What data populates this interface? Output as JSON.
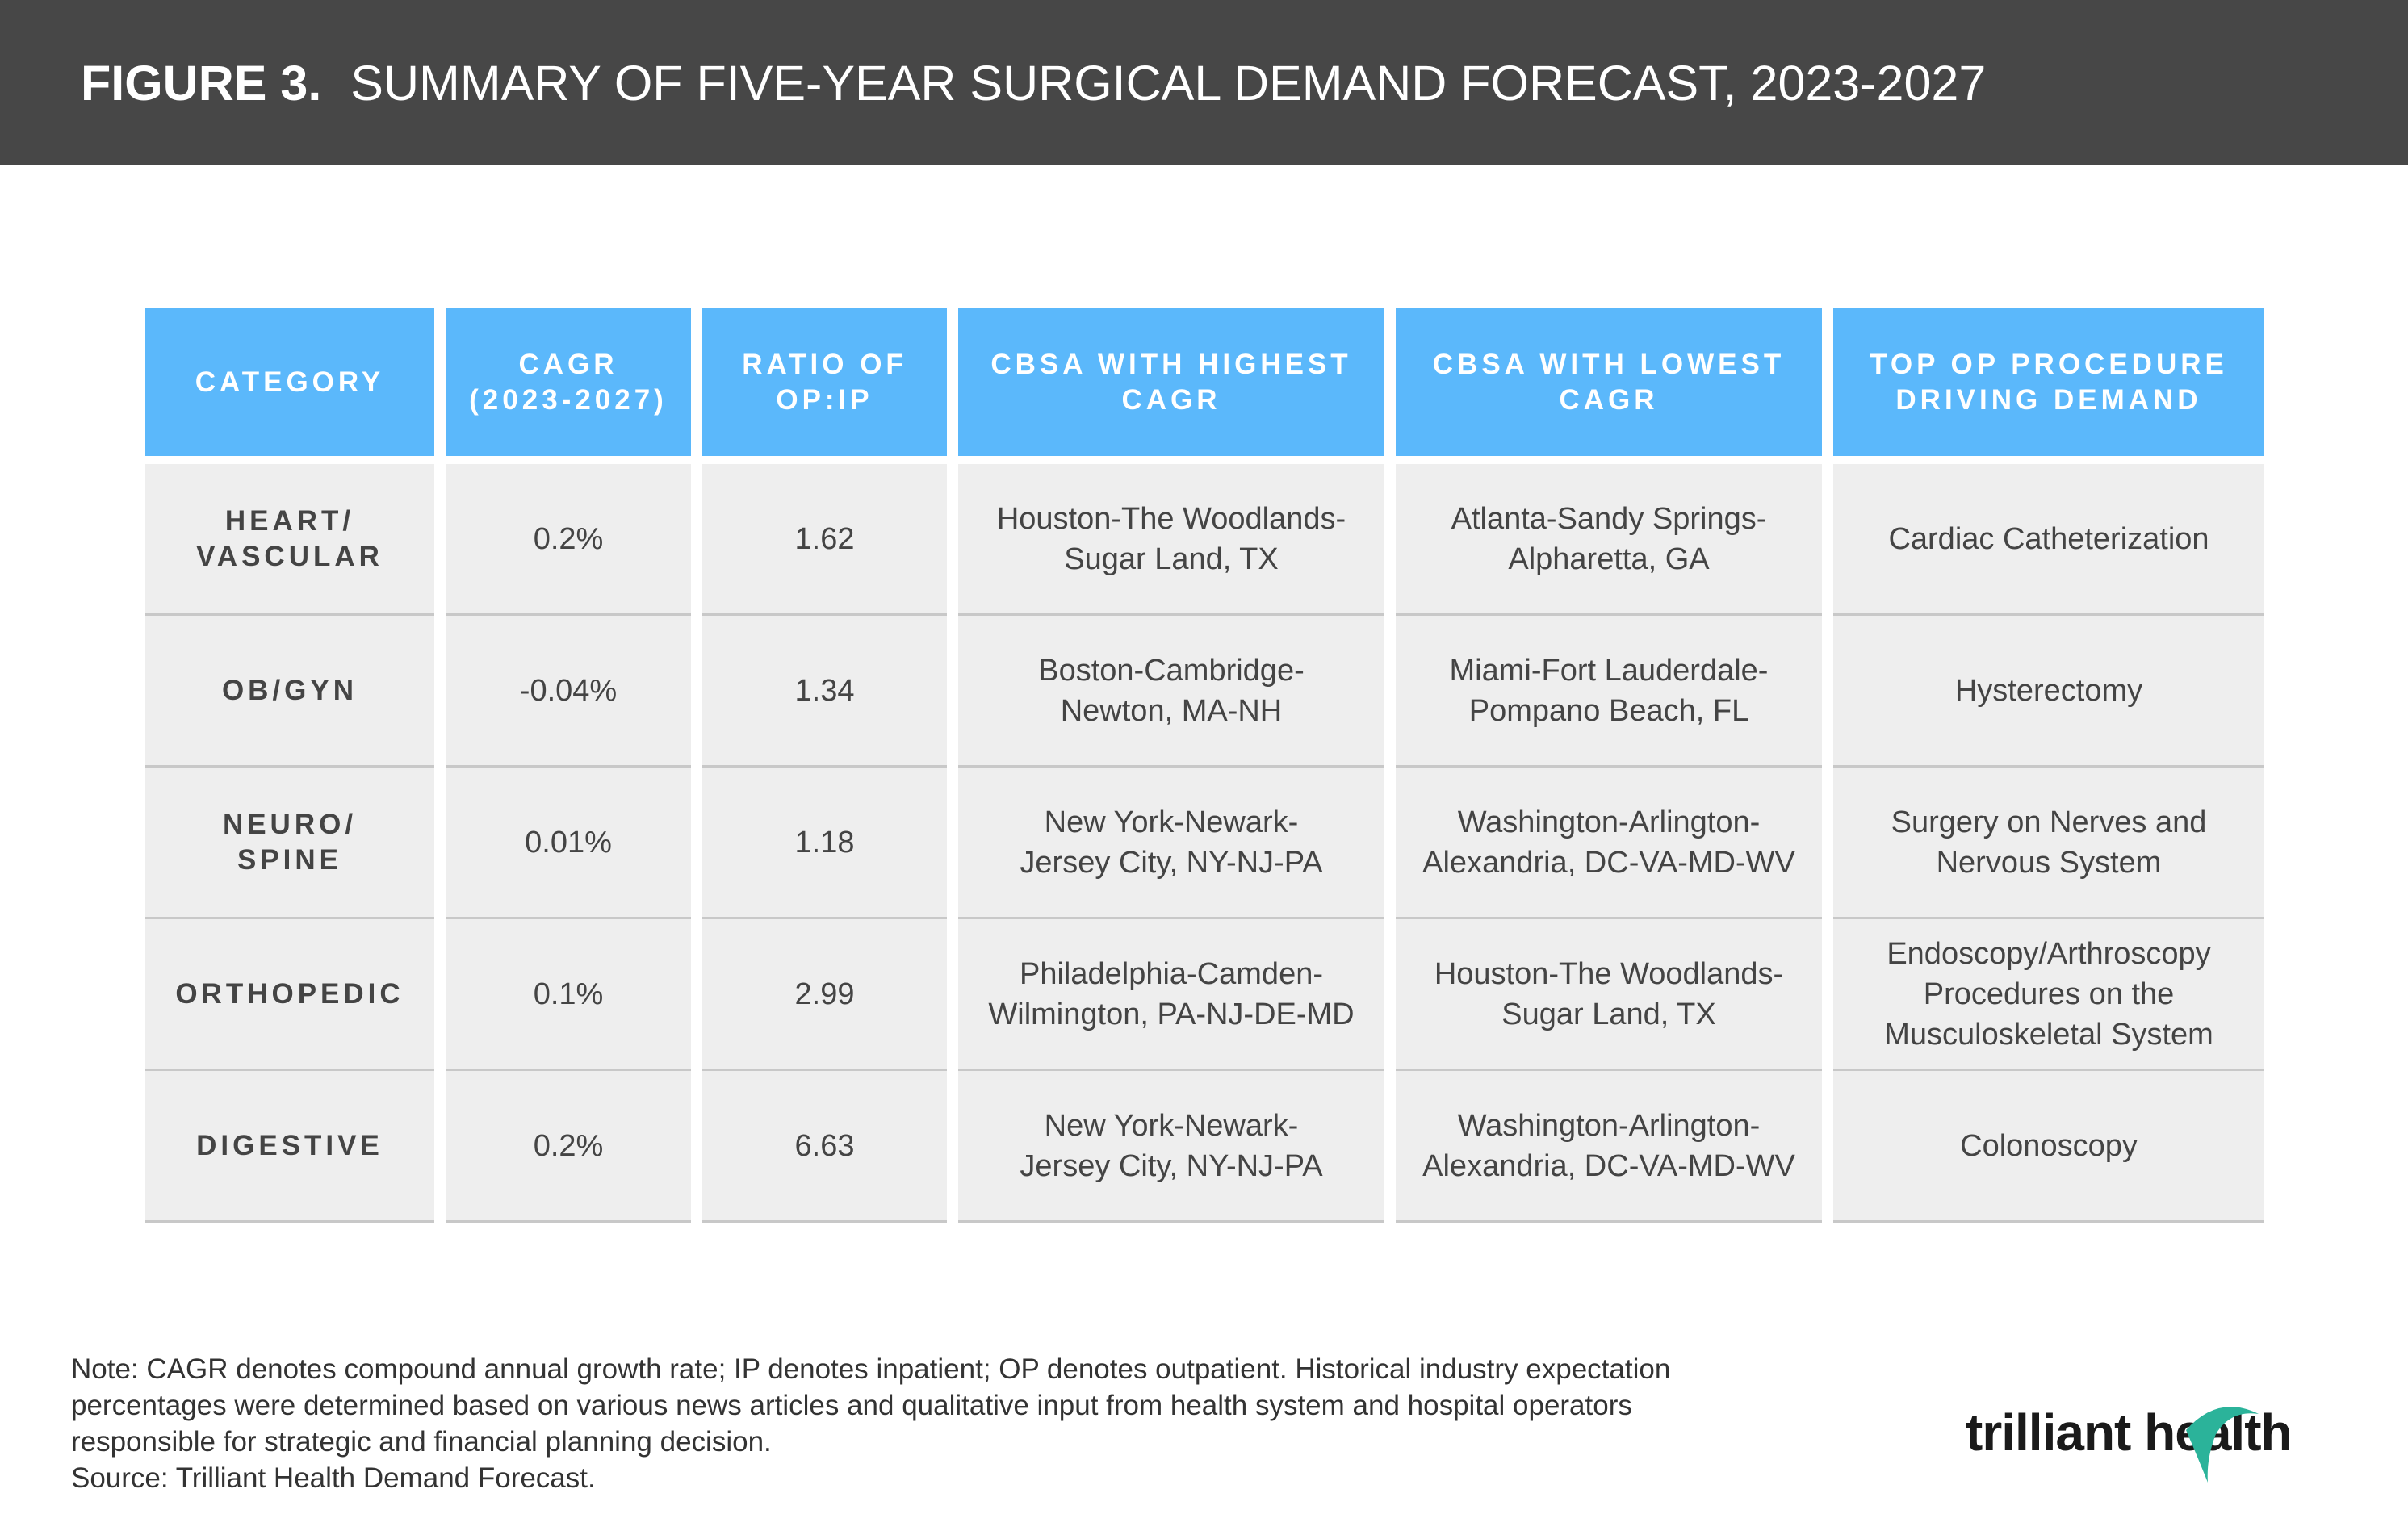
{
  "header": {
    "figure_label": "FIGURE 3.",
    "title": "SUMMARY OF FIVE-YEAR SURGICAL DEMAND FORECAST, 2023-2027"
  },
  "chart_data": {
    "type": "table",
    "columns": [
      "CATEGORY",
      "CAGR\n(2023-2027)",
      "RATIO OF\nOP:IP",
      "CBSA WITH HIGHEST\nCAGR",
      "CBSA WITH LOWEST\nCAGR",
      "TOP OP PROCEDURE\nDRIVING DEMAND"
    ],
    "rows": [
      {
        "category": "HEART/\nVASCULAR",
        "cagr": "0.2%",
        "ratio": "1.62",
        "highest": "Houston-The Woodlands-\nSugar Land, TX",
        "lowest": "Atlanta-Sandy Springs-\nAlpharetta, GA",
        "procedure": "Cardiac Catheterization"
      },
      {
        "category": "OB/GYN",
        "cagr": "-0.04%",
        "ratio": "1.34",
        "highest": "Boston-Cambridge-\nNewton, MA-NH",
        "lowest": "Miami-Fort Lauderdale-\nPompano Beach, FL",
        "procedure": "Hysterectomy"
      },
      {
        "category": "NEURO/\nSPINE",
        "cagr": "0.01%",
        "ratio": "1.18",
        "highest": "New York-Newark-\nJersey City, NY-NJ-PA",
        "lowest": "Washington-Arlington-\nAlexandria, DC-VA-MD-WV",
        "procedure": "Surgery on Nerves and\nNervous System"
      },
      {
        "category": "ORTHOPEDIC",
        "cagr": "0.1%",
        "ratio": "2.99",
        "highest": "Philadelphia-Camden-\nWilmington, PA-NJ-DE-MD",
        "lowest": "Houston-The Woodlands-\nSugar Land, TX",
        "procedure": "Endoscopy/Arthroscopy\nProcedures on the\nMusculoskeletal System"
      },
      {
        "category": "DIGESTIVE",
        "cagr": "0.2%",
        "ratio": "6.63",
        "highest": "New York-Newark-\nJersey City, NY-NJ-PA",
        "lowest": "Washington-Arlington-\nAlexandria, DC-VA-MD-WV",
        "procedure": "Colonoscopy"
      }
    ]
  },
  "footer": {
    "note_line1": "Note: CAGR denotes compound annual growth rate; IP denotes inpatient; OP denotes outpatient. Historical industry expectation",
    "note_line2": "percentages were determined based on various news articles and qualitative input from health system and hospital operators",
    "note_line3": "responsible for strategic and financial planning decision.",
    "source": "Source: Trilliant Health Demand Forecast.",
    "logo_text": "trilliant health"
  },
  "colors": {
    "title_bar": "#474747",
    "header_cell": "#5bb8fb",
    "body_cell": "#eeeeee",
    "logo_swoosh": "#2bb39a"
  }
}
